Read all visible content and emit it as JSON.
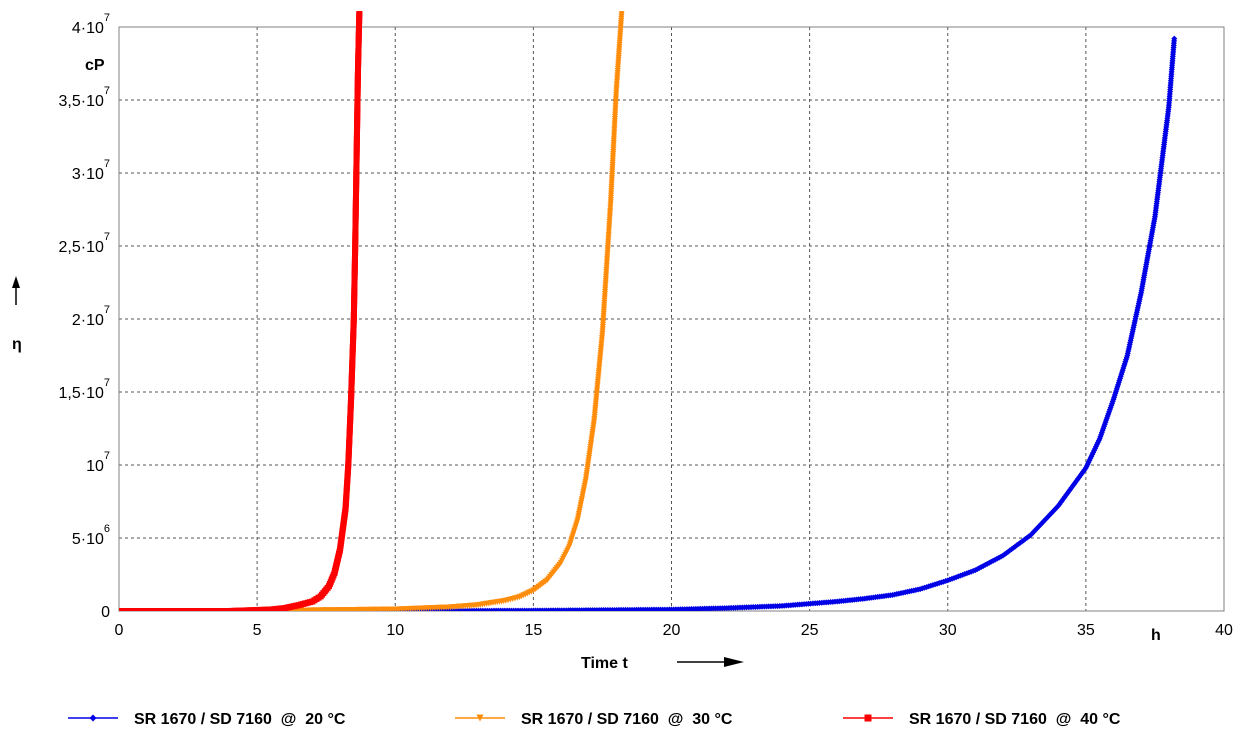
{
  "chart_data": {
    "type": "scatter",
    "xlabel": "Time t",
    "ylabel": "η",
    "x_unit": "h",
    "y_unit": "cP",
    "xlim": [
      0,
      40
    ],
    "ylim": [
      0,
      40000000
    ],
    "x_ticks": [
      0,
      5,
      10,
      15,
      20,
      25,
      30,
      35,
      40
    ],
    "x_tick_labels": [
      "0",
      "5",
      "10",
      "15",
      "20",
      "25",
      "30",
      "35",
      "40"
    ],
    "y_ticks": [
      {
        "value": 0,
        "mant": "0",
        "exp": ""
      },
      {
        "value": 5000000,
        "mant": "5·10",
        "exp": "6"
      },
      {
        "value": 10000000,
        "mant": "10",
        "exp": "7"
      },
      {
        "value": 15000000,
        "mant": "1,5·10",
        "exp": "7"
      },
      {
        "value": 20000000,
        "mant": "2·10",
        "exp": "7"
      },
      {
        "value": 25000000,
        "mant": "2,5·10",
        "exp": "7"
      },
      {
        "value": 30000000,
        "mant": "3·10",
        "exp": "7"
      },
      {
        "value": 35000000,
        "mant": "3,5·10",
        "exp": "7"
      },
      {
        "value": 40000000,
        "mant": "4·10",
        "exp": "7"
      }
    ],
    "grid": true,
    "legend_position": "bottom",
    "series": [
      {
        "name": "SR 1670 / SD 7160  @  20 °C",
        "color": "#0000e6",
        "marker": "diamond",
        "x": [
          0,
          5,
          10,
          15,
          20,
          22,
          24,
          26,
          27,
          28,
          29,
          30,
          31,
          32,
          33,
          34,
          35,
          35.5,
          36,
          36.5,
          37,
          37.5,
          38,
          38.2
        ],
        "y": [
          0,
          0,
          0,
          30000,
          100000,
          200000,
          350000,
          650000,
          850000,
          1100000,
          1500000,
          2100000,
          2800000,
          3800000,
          5200000,
          7200000,
          9800000,
          11800000,
          14500000,
          17500000,
          21800000,
          27000000,
          34500000,
          39200000
        ]
      },
      {
        "name": "SR 1670 / SD 7160  @  30 °C",
        "color": "#ff8c0a",
        "marker": "triangle-down",
        "x": [
          0,
          5,
          10,
          12,
          13,
          14,
          14.5,
          15,
          15.5,
          16,
          16.3,
          16.6,
          16.9,
          17.2,
          17.5,
          17.8,
          18,
          18.2
        ],
        "y": [
          0,
          0,
          100000,
          250000,
          400000,
          700000,
          950000,
          1400000,
          2100000,
          3300000,
          4400000,
          6200000,
          9000000,
          13000000,
          19000000,
          28000000,
          35500000,
          41000000
        ]
      },
      {
        "name": "SR 1670 / SD 7160  @  40 °C",
        "color": "#ff0000",
        "marker": "square",
        "x": [
          0,
          4,
          5.5,
          6,
          6.5,
          7,
          7.3,
          7.6,
          7.8,
          8,
          8.2,
          8.3,
          8.4,
          8.5,
          8.55,
          8.6,
          8.65,
          8.7
        ],
        "y": [
          0,
          0,
          100000,
          200000,
          400000,
          650000,
          1000000,
          1700000,
          2600000,
          4200000,
          7000000,
          10000000,
          14500000,
          20000000,
          25000000,
          31000000,
          37000000,
          41000000
        ]
      }
    ]
  }
}
